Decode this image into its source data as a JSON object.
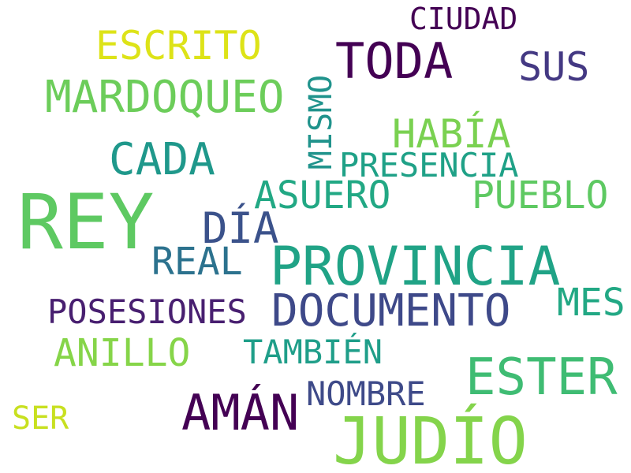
{
  "words": [
    {
      "text": "CIUDAD",
      "color": "#440154"
    },
    {
      "text": "ESCRITO",
      "color": "#dde318"
    },
    {
      "text": "TODA",
      "color": "#440154"
    },
    {
      "text": "SUS",
      "color": "#443983"
    },
    {
      "text": "MARDOQUEO",
      "color": "#6ccd5a"
    },
    {
      "text": "MISMO",
      "color": "#20938c"
    },
    {
      "text": "HABÍA",
      "color": "#7ad151"
    },
    {
      "text": "CADA",
      "color": "#1f988b"
    },
    {
      "text": "PRESENCIA",
      "color": "#1fa187"
    },
    {
      "text": "ASUERO",
      "color": "#22a884"
    },
    {
      "text": "PUEBLO",
      "color": "#5ec962"
    },
    {
      "text": "REY",
      "color": "#5ec962"
    },
    {
      "text": "DÍA",
      "color": "#3b528b"
    },
    {
      "text": "REAL",
      "color": "#2c728e"
    },
    {
      "text": "PROVINCIA",
      "color": "#20a386"
    },
    {
      "text": "MES",
      "color": "#22a884"
    },
    {
      "text": "POSESIONES",
      "color": "#481f70"
    },
    {
      "text": "DOCUMENTO",
      "color": "#3e4989"
    },
    {
      "text": "ANILLO",
      "color": "#86d549"
    },
    {
      "text": "TAMBIÉN",
      "color": "#1f9e89"
    },
    {
      "text": "ESTER",
      "color": "#3fbc73"
    },
    {
      "text": "NOMBRE",
      "color": "#3e4a89"
    },
    {
      "text": "AMÁN",
      "color": "#440154"
    },
    {
      "text": "SER",
      "color": "#c8e020"
    },
    {
      "text": "JUDÍO",
      "color": "#84d44b"
    }
  ]
}
